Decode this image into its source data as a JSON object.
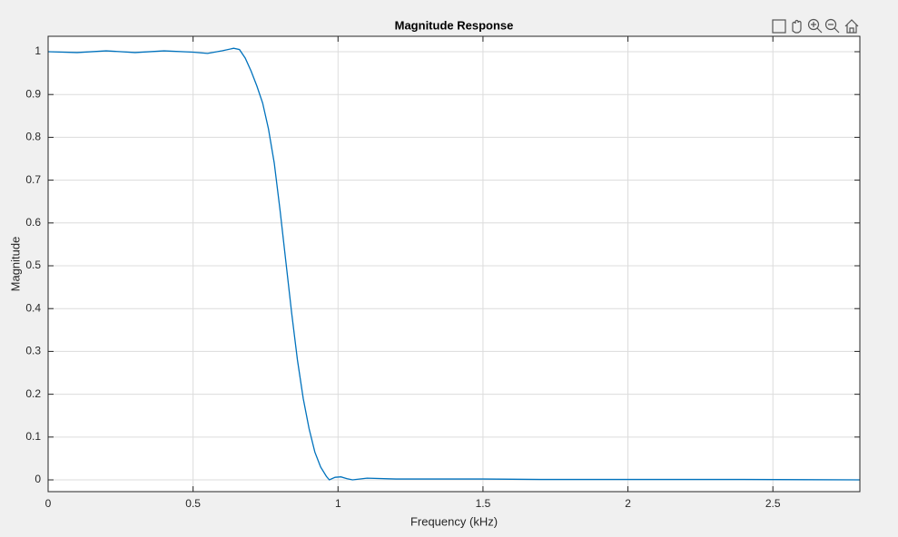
{
  "chart_data": {
    "type": "line",
    "title": "Magnitude Response",
    "x_label": "Frequency (kHz)",
    "y_label": "Magnitude",
    "x": [
      0,
      0.1,
      0.2,
      0.3,
      0.4,
      0.5,
      0.55,
      0.6,
      0.64,
      0.66,
      0.68,
      0.7,
      0.72,
      0.74,
      0.76,
      0.78,
      0.8,
      0.82,
      0.84,
      0.86,
      0.88,
      0.9,
      0.92,
      0.94,
      0.96,
      0.97,
      0.99,
      1.01,
      1.03,
      1.05,
      1.1,
      1.2,
      1.3,
      1.5,
      1.7,
      2.0,
      2.4,
      2.8
    ],
    "values": [
      1.0,
      0.998,
      1.002,
      0.998,
      1.002,
      0.999,
      0.996,
      1.002,
      1.008,
      1.005,
      0.985,
      0.955,
      0.92,
      0.88,
      0.82,
      0.74,
      0.63,
      0.51,
      0.39,
      0.28,
      0.19,
      0.12,
      0.065,
      0.03,
      0.008,
      0.0,
      0.006,
      0.007,
      0.003,
      0.0,
      0.004,
      0.002,
      0.002,
      0.002,
      0.001,
      0.001,
      0.001,
      0.0
    ],
    "color": "#0072bd",
    "xlim": [
      0,
      2.8
    ],
    "xticks": [
      0,
      0.5,
      1,
      1.5,
      2,
      2.5
    ],
    "ylim": [
      -0.0275,
      1.036
    ],
    "yticks": [
      0,
      0.1,
      0.2,
      0.3,
      0.4,
      0.5,
      0.6,
      0.7,
      0.8,
      0.9,
      1
    ],
    "grid": true
  }
}
